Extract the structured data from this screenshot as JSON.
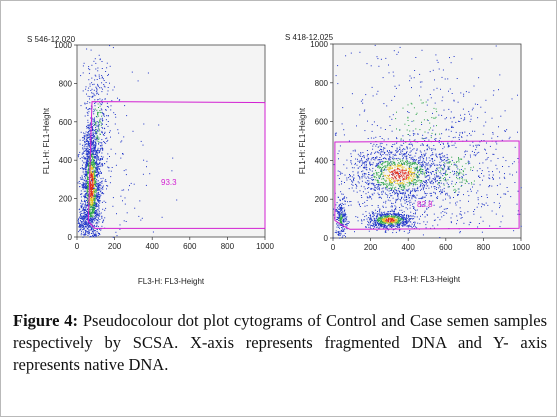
{
  "colors": {
    "gate": "#d21fd2",
    "dots_blue": "#1d32c8",
    "dots_green": "#2ea64a",
    "dots_yellow": "#e6c21e",
    "dots_red": "#e0291c",
    "plot_bg": "#f4f4f4"
  },
  "chart_data": [
    {
      "type": "scatter",
      "sample_id": "S 546-12.020",
      "xlabel": "FL3-H: FL3-Height",
      "ylabel": "FL1-H: FL1-Height",
      "xlim": [
        0,
        1000
      ],
      "ylim": [
        0,
        1000
      ],
      "xticks": [
        "0",
        "200",
        "400",
        "600",
        "800",
        "1000"
      ],
      "yticks": [
        "0",
        "200",
        "400",
        "600",
        "800",
        "1000"
      ],
      "grid": false,
      "gate": {
        "label": "93.3",
        "polygon": [
          [
            80,
            705
          ],
          [
            1000,
            700
          ],
          [
            1000,
            45
          ],
          [
            95,
            45
          ],
          [
            60,
            80
          ]
        ]
      },
      "populations": [
        {
          "name": "",
          "x_mean": 75,
          "x_sd": 25,
          "y_mean": 270,
          "y_sd": 170,
          "count": 1800
        },
        {
          "name": "",
          "x_mean": 110,
          "x_sd": 35,
          "y_mean": 600,
          "y_sd": 200,
          "count": 320
        },
        {
          "name": "",
          "x_mean": 30,
          "x_sd": 20,
          "y_mean": 70,
          "y_sd": 40,
          "count": 150
        },
        {
          "name": "",
          "x_mean": 220,
          "x_sd": 150,
          "y_mean": 350,
          "y_sd": 250,
          "count": 120
        }
      ]
    },
    {
      "type": "scatter",
      "sample_id": "S 418-12.025",
      "xlabel": "FL3-H: FL3-Height",
      "ylabel": "FL1-H: FL1-Height",
      "xlim": [
        0,
        1000
      ],
      "ylim": [
        0,
        1000
      ],
      "xticks": [
        "0",
        "200",
        "400",
        "600",
        "800",
        "1000"
      ],
      "yticks": [
        "0",
        "200",
        "400",
        "600",
        "800",
        "1000"
      ],
      "grid": false,
      "gate": {
        "label": "82.8",
        "polygon": [
          [
            10,
            495
          ],
          [
            990,
            500
          ],
          [
            990,
            50
          ],
          [
            90,
            45
          ],
          [
            60,
            60
          ],
          [
            10,
            90
          ]
        ]
      },
      "populations": [
        {
          "name": "",
          "x_mean": 350,
          "x_sd": 140,
          "y_mean": 330,
          "y_sd": 80,
          "count": 1400
        },
        {
          "name": "",
          "x_mean": 300,
          "x_sd": 70,
          "y_mean": 95,
          "y_sd": 25,
          "count": 700
        },
        {
          "name": "",
          "x_mean": 40,
          "x_sd": 15,
          "y_mean": 100,
          "y_sd": 50,
          "count": 250
        },
        {
          "name": "",
          "x_mean": 650,
          "x_sd": 200,
          "y_mean": 330,
          "y_sd": 170,
          "count": 500
        },
        {
          "name": "",
          "x_mean": 450,
          "x_sd": 250,
          "y_mean": 600,
          "y_sd": 220,
          "count": 350
        }
      ]
    }
  ],
  "caption": {
    "label": "Figure 4:",
    "text": " Pseudocolour dot plot cytograms of Control and Case semen samples respectively by SCSA. X-axis represents fragmented DNA and Y- axis represents native DNA."
  }
}
